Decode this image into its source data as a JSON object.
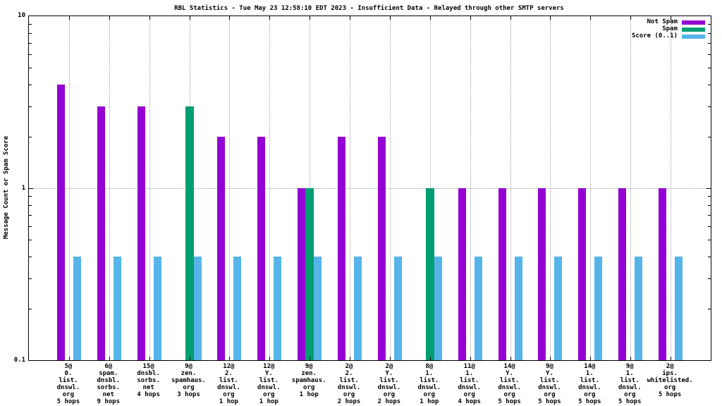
{
  "title": "RBL Statistics - Tue May 23 12:58:10 EDT 2023 - Insufficient Data - Relayed through other SMTP servers",
  "ylabel": "Message Count or Spam Score",
  "y_ticks": [
    {
      "label": "10",
      "value": 10
    },
    {
      "label": "1",
      "value": 1
    },
    {
      "label": "0.1",
      "value": 0.1
    }
  ],
  "legend": [
    {
      "label": "Not Spam",
      "color": "#9400d3"
    },
    {
      "label": "Spam",
      "color": "#009e73"
    },
    {
      "label": "Score (0..1)",
      "color": "#56b4e9"
    }
  ],
  "colors": {
    "not_spam": "#9400d3",
    "spam": "#009e73",
    "score": "#56b4e9",
    "grid": "#a0a0a0",
    "border": "#000000"
  },
  "chart_data": {
    "type": "bar",
    "scale": "log",
    "ylim": [
      0.1,
      10
    ],
    "grid": true,
    "legend_position": "top-right",
    "title": "RBL Statistics - Tue May 23 12:58:10 EDT 2023 - Insufficient Data - Relayed through other SMTP servers",
    "xlabel": "",
    "ylabel": "Message Count or Spam Score",
    "categories": [
      [
        "5@",
        "0.",
        "list.",
        "dnswl.",
        "org",
        "5 hops"
      ],
      [
        "6@",
        "spam.",
        "dnsbl.",
        "sorbs.",
        "net",
        "9 hops"
      ],
      [
        "15@",
        "dnsbl.",
        "sorbs.",
        "net",
        "4 hops"
      ],
      [
        "9@",
        "zen.",
        "spamhaus.",
        "org",
        "3 hops"
      ],
      [
        "12@",
        "2.",
        "list.",
        "dnswl.",
        "org",
        "1 hop"
      ],
      [
        "12@",
        "Y.",
        "list.",
        "dnswl.",
        "org",
        "1 hop"
      ],
      [
        "9@",
        "zen.",
        "spamhaus.",
        "org",
        "1 hop"
      ],
      [
        "2@",
        "2.",
        "list.",
        "dnswl.",
        "org",
        "2 hops"
      ],
      [
        "2@",
        "Y.",
        "list.",
        "dnswl.",
        "org",
        "2 hops"
      ],
      [
        "8@",
        "1.",
        "list.",
        "dnswl.",
        "org",
        "1 hop"
      ],
      [
        "11@",
        "1.",
        "list.",
        "dnswl.",
        "org",
        "4 hops"
      ],
      [
        "14@",
        "Y.",
        "list.",
        "dnswl.",
        "org",
        "5 hops"
      ],
      [
        "9@",
        "Y.",
        "list.",
        "dnswl.",
        "org",
        "5 hops"
      ],
      [
        "14@",
        "1.",
        "list.",
        "dnswl.",
        "org",
        "5 hops"
      ],
      [
        "9@",
        "1.",
        "list.",
        "dnswl.",
        "org",
        "5 hops"
      ],
      [
        "2@",
        "ips.",
        "whitelisted.",
        "org",
        "5 hops"
      ]
    ],
    "series": [
      {
        "name": "Not Spam",
        "color": "#9400d3",
        "values": [
          4,
          3,
          3,
          0,
          2,
          2,
          1,
          2,
          2,
          0,
          1,
          1,
          1,
          1,
          1,
          1
        ]
      },
      {
        "name": "Spam",
        "color": "#009e73",
        "values": [
          0,
          0,
          0,
          3,
          0,
          0,
          1,
          0,
          0,
          1,
          0,
          0,
          0,
          0,
          0,
          0
        ]
      },
      {
        "name": "Score (0..1)",
        "color": "#56b4e9",
        "values": [
          0.4,
          0.4,
          0.4,
          0.4,
          0.4,
          0.4,
          0.4,
          0.4,
          0.4,
          0.4,
          0.4,
          0.4,
          0.4,
          0.4,
          0.4,
          0.4
        ]
      }
    ]
  }
}
